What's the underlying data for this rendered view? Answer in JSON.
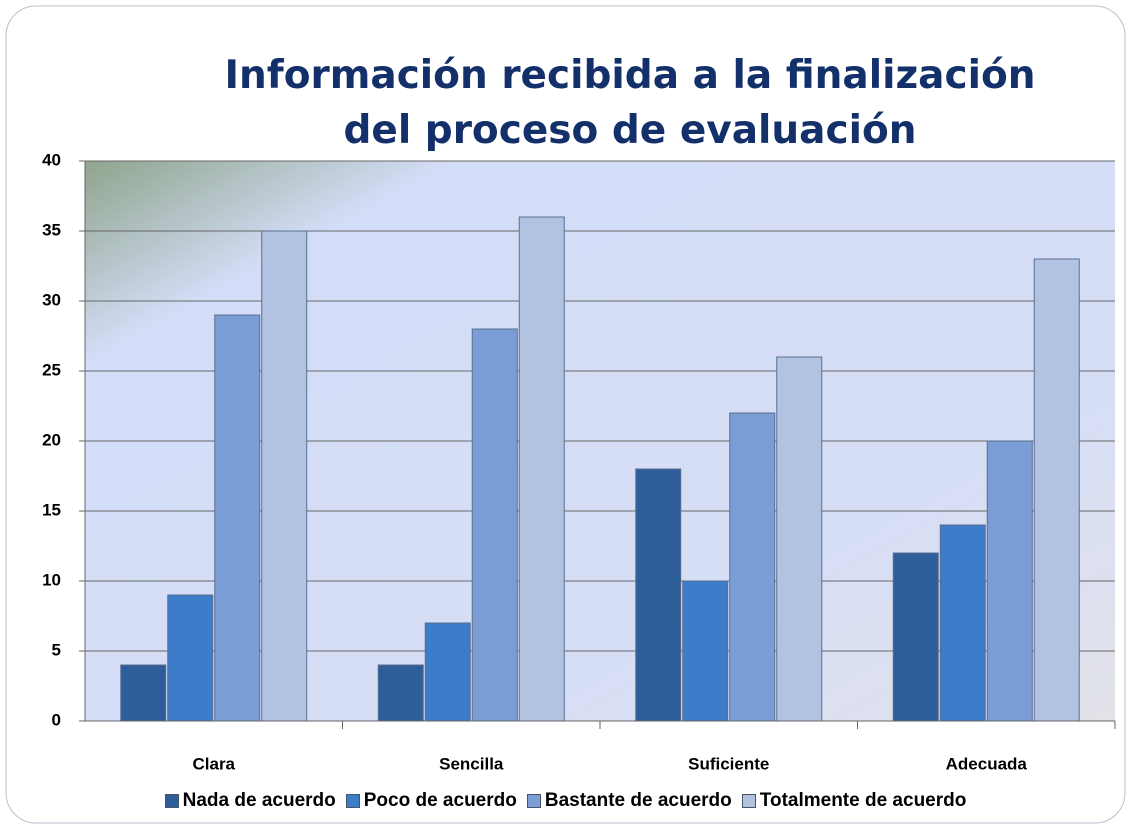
{
  "chart_data": {
    "type": "bar",
    "title": "Información recibida a la finalización del proceso de evaluación",
    "categories": [
      "Clara",
      "Sencilla",
      "Suficiente",
      "Adecuada"
    ],
    "series": [
      {
        "name": "Nada de acuerdo",
        "color": "#2d5e9a",
        "values": [
          4,
          4,
          18,
          12
        ]
      },
      {
        "name": "Poco de acuerdo",
        "color": "#3c7cc8",
        "values": [
          9,
          7,
          10,
          14
        ]
      },
      {
        "name": "Bastante de acuerdo",
        "color": "#7b9dd6",
        "values": [
          29,
          28,
          22,
          20
        ]
      },
      {
        "name": "Totalmente de acuerdo",
        "color": "#b2c3e2",
        "values": [
          35,
          36,
          26,
          33
        ]
      }
    ],
    "ylim": [
      0,
      40
    ],
    "yticks": [
      0,
      5,
      10,
      15,
      20,
      25,
      30,
      35,
      40
    ],
    "grid": true,
    "legend": "bottom"
  }
}
